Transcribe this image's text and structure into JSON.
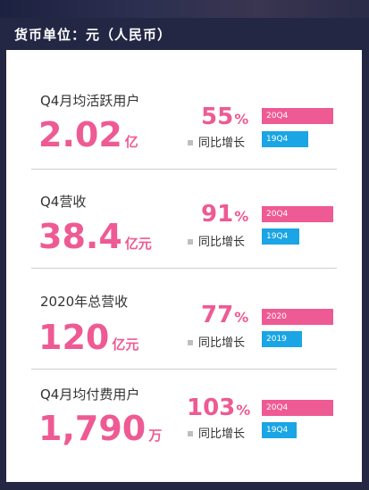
{
  "header": {
    "title": "货币单位：元（人民币）"
  },
  "colors": {
    "accent_pink": "#ee5a94",
    "accent_blue": "#1aa5e4",
    "background": "#232744"
  },
  "sections": [
    {
      "label": "Q4月均活跃用户",
      "value": "2.02",
      "unit": "亿",
      "growth_value": "55",
      "growth_sign": "%",
      "growth_label": "同比增长",
      "bar_current_label": "20Q4",
      "bar_prior_label": "19Q4",
      "bar_ratio": 0.645
    },
    {
      "label": "Q4营收",
      "value": "38.4",
      "unit": "亿元",
      "growth_value": "91",
      "growth_sign": "%",
      "growth_label": "同比增长",
      "bar_current_label": "20Q4",
      "bar_prior_label": "19Q4",
      "bar_ratio": 0.523
    },
    {
      "label": "2020年总营收",
      "value": "120",
      "unit": "亿元",
      "growth_value": "77",
      "growth_sign": "%",
      "growth_label": "同比增长",
      "bar_current_label": "2020",
      "bar_prior_label": "2019",
      "bar_ratio": 0.565
    },
    {
      "label": "Q4月均付费用户",
      "value": "1,790",
      "unit": "万",
      "growth_value": "103",
      "growth_sign": "%",
      "growth_label": "同比增长",
      "bar_current_label": "20Q4",
      "bar_prior_label": "19Q4",
      "bar_ratio": 0.493
    }
  ]
}
